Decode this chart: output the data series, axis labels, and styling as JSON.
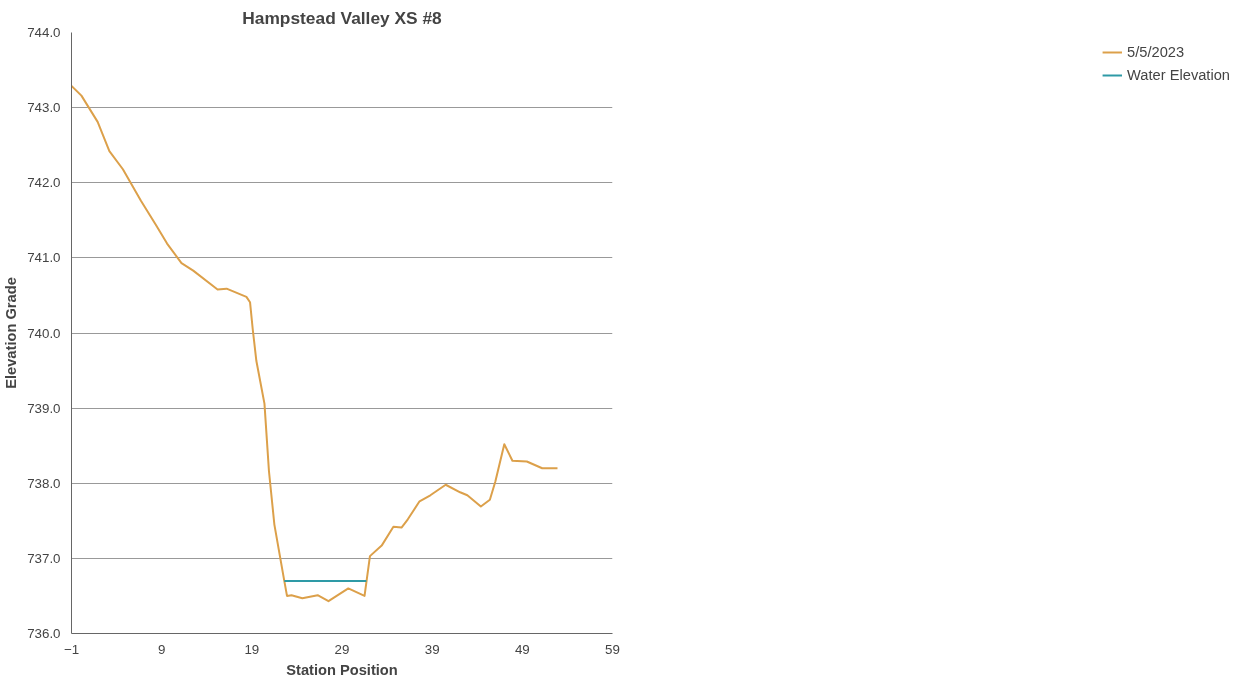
{
  "chart_data": {
    "type": "line",
    "title": "Hampstead Valley XS #8",
    "xlabel": "Station Position",
    "ylabel": "Elevation Grade",
    "xlim": [
      -1,
      59
    ],
    "xticks": [
      -1,
      9,
      19,
      29,
      39,
      49,
      59
    ],
    "ylim": [
      736,
      744
    ],
    "yticks": [
      {
        "value": 736,
        "label": "736.0"
      },
      {
        "value": 737,
        "label": "737.0"
      },
      {
        "value": 738,
        "label": "738.0"
      },
      {
        "value": 739,
        "label": "739.0"
      },
      {
        "value": 740,
        "label": "740.0"
      },
      {
        "value": 741,
        "label": "741.0"
      },
      {
        "value": 742,
        "label": "742.0"
      },
      {
        "value": 743,
        "label": "743.0"
      },
      {
        "value": 744,
        "label": "744.0"
      }
    ],
    "grid": "y",
    "legend": "right",
    "marker": "none",
    "line_style": "solid",
    "series": [
      {
        "name": "5/5/2023",
        "color": "#dca04a",
        "x": [
          -1,
          0.1,
          1.9,
          3.2,
          4.7,
          6.7,
          8.4,
          9.6,
          11.2,
          12.5,
          15.2,
          16.2,
          18.4,
          18.8,
          19.1,
          19.5,
          20.4,
          20.9,
          21.5,
          22.6,
          22.9,
          23.4,
          24.6,
          26.3,
          27.5,
          29.7,
          31.5,
          32.1,
          33.4,
          34.7,
          35.6,
          36.3,
          37.6,
          38.8,
          40.5,
          42.1,
          42.9,
          44.4,
          45.4,
          46.0,
          47.0,
          47.9,
          49.5,
          51.2,
          52.9
        ],
        "values": [
          743.29,
          743.16,
          742.81,
          742.42,
          742.18,
          741.76,
          741.43,
          741.19,
          740.93,
          740.83,
          740.58,
          740.59,
          740.48,
          740.41,
          740.05,
          739.63,
          739.06,
          738.16,
          737.45,
          736.7,
          736.5,
          736.51,
          736.47,
          736.51,
          736.43,
          736.6,
          736.5,
          737.03,
          737.17,
          737.42,
          737.41,
          737.52,
          737.76,
          737.84,
          737.98,
          737.88,
          737.84,
          737.69,
          737.78,
          738.02,
          738.52,
          738.3,
          738.29,
          738.2,
          738.2
        ]
      },
      {
        "name": "Water Elevation",
        "color": "#2e9aa6",
        "x": [
          22.6,
          31.7
        ],
        "values": [
          736.7,
          736.7
        ]
      }
    ]
  }
}
